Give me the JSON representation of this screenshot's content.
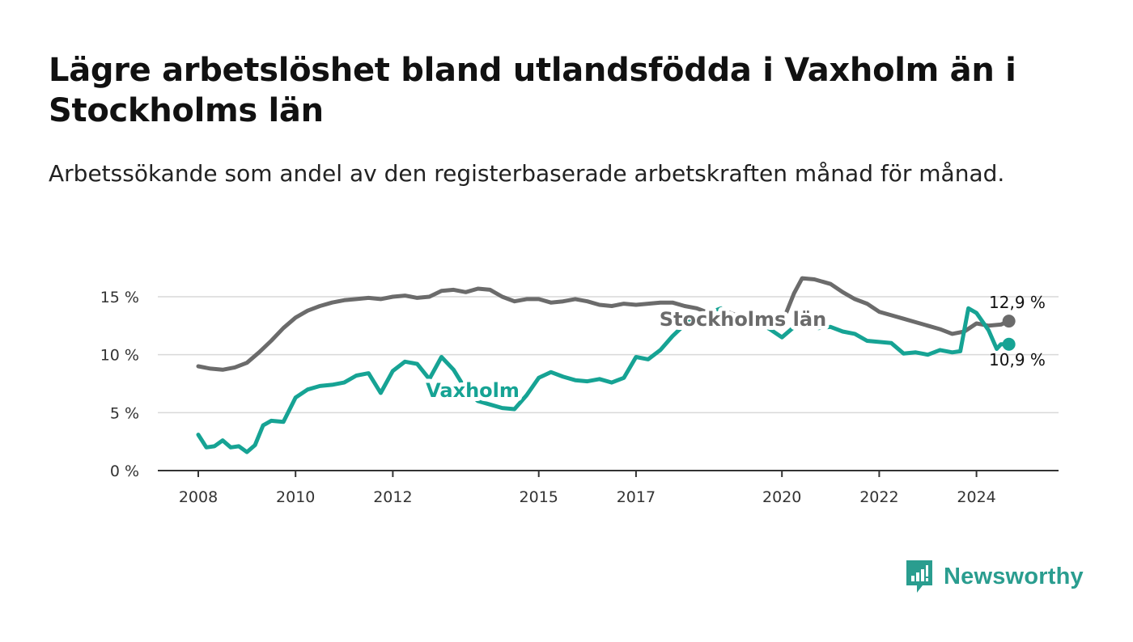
{
  "title": "Lägre arbetslöshet bland utlandsfödda i Vaxholm än i Stockholms län",
  "subtitle": "Arbetssökande som andel av den registerbaserade arbetskraften månad för månad.",
  "brand": {
    "name": "Newsworthy",
    "color": "#2a9d8f",
    "icon": "newsworthy-logo-icon"
  },
  "chart_data": {
    "type": "line",
    "xlim": [
      "2008-01",
      "2024-12"
    ],
    "ylim": [
      0,
      15
    ],
    "y_ticks": [
      {
        "value": 0,
        "label": "0 %"
      },
      {
        "value": 5,
        "label": "5 %"
      },
      {
        "value": 10,
        "label": "10 %"
      },
      {
        "value": 15,
        "label": "15 %"
      }
    ],
    "x_ticks": [
      {
        "value": "2008-01",
        "label": "2008"
      },
      {
        "value": "2010-01",
        "label": "2010"
      },
      {
        "value": "2012-01",
        "label": "2012"
      },
      {
        "value": "2015-01",
        "label": "2015"
      },
      {
        "value": "2017-01",
        "label": "2017"
      },
      {
        "value": "2020-01",
        "label": "2020"
      },
      {
        "value": "2022-01",
        "label": "2022"
      },
      {
        "value": "2024-01",
        "label": "2024"
      }
    ],
    "grid": true,
    "series": [
      {
        "name": "Stockholms län",
        "color": "#6b6b6b",
        "last_value_label": "12,9 %",
        "points": [
          [
            "2008-01",
            9.0
          ],
          [
            "2008-04",
            8.8
          ],
          [
            "2008-07",
            8.7
          ],
          [
            "2008-10",
            8.9
          ],
          [
            "2009-01",
            9.3
          ],
          [
            "2009-04",
            10.2
          ],
          [
            "2009-07",
            11.2
          ],
          [
            "2009-10",
            12.3
          ],
          [
            "2010-01",
            13.2
          ],
          [
            "2010-04",
            13.8
          ],
          [
            "2010-07",
            14.2
          ],
          [
            "2010-10",
            14.5
          ],
          [
            "2011-01",
            14.7
          ],
          [
            "2011-04",
            14.8
          ],
          [
            "2011-07",
            14.9
          ],
          [
            "2011-10",
            14.8
          ],
          [
            "2012-01",
            15.0
          ],
          [
            "2012-04",
            15.1
          ],
          [
            "2012-07",
            14.9
          ],
          [
            "2012-10",
            15.0
          ],
          [
            "2013-01",
            15.5
          ],
          [
            "2013-04",
            15.6
          ],
          [
            "2013-07",
            15.4
          ],
          [
            "2013-10",
            15.7
          ],
          [
            "2014-01",
            15.6
          ],
          [
            "2014-04",
            15.0
          ],
          [
            "2014-07",
            14.6
          ],
          [
            "2014-10",
            14.8
          ],
          [
            "2015-01",
            14.8
          ],
          [
            "2015-04",
            14.5
          ],
          [
            "2015-07",
            14.6
          ],
          [
            "2015-10",
            14.8
          ],
          [
            "2016-01",
            14.6
          ],
          [
            "2016-04",
            14.3
          ],
          [
            "2016-07",
            14.2
          ],
          [
            "2016-10",
            14.4
          ],
          [
            "2017-01",
            14.3
          ],
          [
            "2017-04",
            14.4
          ],
          [
            "2017-07",
            14.5
          ],
          [
            "2017-10",
            14.5
          ],
          [
            "2018-01",
            14.2
          ],
          [
            "2018-04",
            14.0
          ],
          [
            "2018-07",
            13.6
          ],
          [
            "2018-10",
            13.9
          ],
          [
            "2019-01",
            13.5
          ],
          [
            "2019-04",
            13.2
          ],
          [
            "2019-07",
            13.0
          ],
          [
            "2019-10",
            12.9
          ],
          [
            "2020-01",
            12.7
          ],
          [
            "2020-04",
            15.3
          ],
          [
            "2020-06",
            16.6
          ],
          [
            "2020-09",
            16.5
          ],
          [
            "2021-01",
            16.1
          ],
          [
            "2021-04",
            15.4
          ],
          [
            "2021-07",
            14.8
          ],
          [
            "2021-10",
            14.4
          ],
          [
            "2022-01",
            13.7
          ],
          [
            "2022-04",
            13.4
          ],
          [
            "2022-07",
            13.1
          ],
          [
            "2022-10",
            12.8
          ],
          [
            "2023-01",
            12.5
          ],
          [
            "2023-04",
            12.2
          ],
          [
            "2023-07",
            11.8
          ],
          [
            "2023-10",
            12.0
          ],
          [
            "2024-01",
            12.7
          ],
          [
            "2024-04",
            12.5
          ],
          [
            "2024-07",
            12.6
          ],
          [
            "2024-09",
            12.9
          ]
        ]
      },
      {
        "name": "Vaxholm",
        "color": "#16a394",
        "last_value_label": "10,9 %",
        "points": [
          [
            "2008-01",
            3.1
          ],
          [
            "2008-03",
            2.0
          ],
          [
            "2008-05",
            2.1
          ],
          [
            "2008-07",
            2.6
          ],
          [
            "2008-09",
            2.0
          ],
          [
            "2008-11",
            2.1
          ],
          [
            "2009-01",
            1.6
          ],
          [
            "2009-03",
            2.2
          ],
          [
            "2009-05",
            3.9
          ],
          [
            "2009-07",
            4.3
          ],
          [
            "2009-10",
            4.2
          ],
          [
            "2010-01",
            6.3
          ],
          [
            "2010-04",
            7.0
          ],
          [
            "2010-07",
            7.3
          ],
          [
            "2010-10",
            7.4
          ],
          [
            "2011-01",
            7.6
          ],
          [
            "2011-04",
            8.2
          ],
          [
            "2011-07",
            8.4
          ],
          [
            "2011-10",
            6.7
          ],
          [
            "2012-01",
            8.6
          ],
          [
            "2012-04",
            9.4
          ],
          [
            "2012-07",
            9.2
          ],
          [
            "2012-10",
            7.9
          ],
          [
            "2013-01",
            9.8
          ],
          [
            "2013-04",
            8.7
          ],
          [
            "2013-07",
            7.0
          ],
          [
            "2013-10",
            6.0
          ],
          [
            "2014-01",
            5.7
          ],
          [
            "2014-04",
            5.4
          ],
          [
            "2014-07",
            5.3
          ],
          [
            "2014-10",
            6.5
          ],
          [
            "2015-01",
            8.0
          ],
          [
            "2015-04",
            8.5
          ],
          [
            "2015-07",
            8.1
          ],
          [
            "2015-10",
            7.8
          ],
          [
            "2016-01",
            7.7
          ],
          [
            "2016-04",
            7.9
          ],
          [
            "2016-07",
            7.6
          ],
          [
            "2016-10",
            8.0
          ],
          [
            "2017-01",
            9.8
          ],
          [
            "2017-04",
            9.6
          ],
          [
            "2017-07",
            10.4
          ],
          [
            "2017-10",
            11.6
          ],
          [
            "2018-01",
            12.6
          ],
          [
            "2018-04",
            13.2
          ],
          [
            "2018-07",
            13.6
          ],
          [
            "2018-10",
            14.0
          ],
          [
            "2019-01",
            13.2
          ],
          [
            "2019-04",
            13.5
          ],
          [
            "2019-07",
            12.8
          ],
          [
            "2019-10",
            12.2
          ],
          [
            "2020-01",
            11.5
          ],
          [
            "2020-04",
            12.4
          ],
          [
            "2020-07",
            12.6
          ],
          [
            "2020-10",
            12.3
          ],
          [
            "2021-01",
            12.4
          ],
          [
            "2021-04",
            12.0
          ],
          [
            "2021-07",
            11.8
          ],
          [
            "2021-10",
            11.2
          ],
          [
            "2022-01",
            11.1
          ],
          [
            "2022-04",
            11.0
          ],
          [
            "2022-07",
            10.1
          ],
          [
            "2022-10",
            10.2
          ],
          [
            "2023-01",
            10.0
          ],
          [
            "2023-04",
            10.4
          ],
          [
            "2023-07",
            10.2
          ],
          [
            "2023-09",
            10.3
          ],
          [
            "2023-11",
            14.0
          ],
          [
            "2024-01",
            13.6
          ],
          [
            "2024-04",
            12.1
          ],
          [
            "2024-06",
            10.5
          ],
          [
            "2024-07",
            10.9
          ],
          [
            "2024-09",
            10.9
          ]
        ]
      }
    ]
  }
}
